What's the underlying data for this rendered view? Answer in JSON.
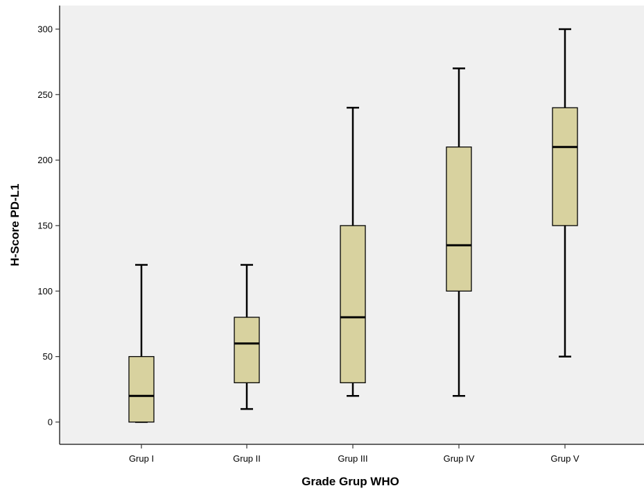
{
  "chart_data": {
    "type": "boxplot",
    "xlabel": "Grade Grup WHO",
    "ylabel": "H-Score PD-L1",
    "ylim": [
      -17,
      318
    ],
    "yticks": [
      0,
      50,
      100,
      150,
      200,
      250,
      300
    ],
    "grid": false,
    "categories": [
      "Grup I",
      "Grup II",
      "Grup III",
      "Grup IV",
      "Grup V"
    ],
    "boxes": [
      {
        "category": "Grup I",
        "min": 0,
        "q1": 0,
        "median": 20,
        "q3": 50,
        "max": 120
      },
      {
        "category": "Grup II",
        "min": 10,
        "q1": 30,
        "median": 60,
        "q3": 80,
        "max": 120
      },
      {
        "category": "Grup III",
        "min": 20,
        "q1": 30,
        "median": 80,
        "q3": 150,
        "max": 240
      },
      {
        "category": "Grup IV",
        "min": 20,
        "q1": 100,
        "median": 135,
        "q3": 210,
        "max": 270
      },
      {
        "category": "Grup V",
        "min": 50,
        "q1": 150,
        "median": 210,
        "q3": 240,
        "max": 300
      }
    ],
    "colors": {
      "plot_background": "#f0f0f0",
      "box_fill": "#d8d29f",
      "line": "#000000"
    }
  }
}
